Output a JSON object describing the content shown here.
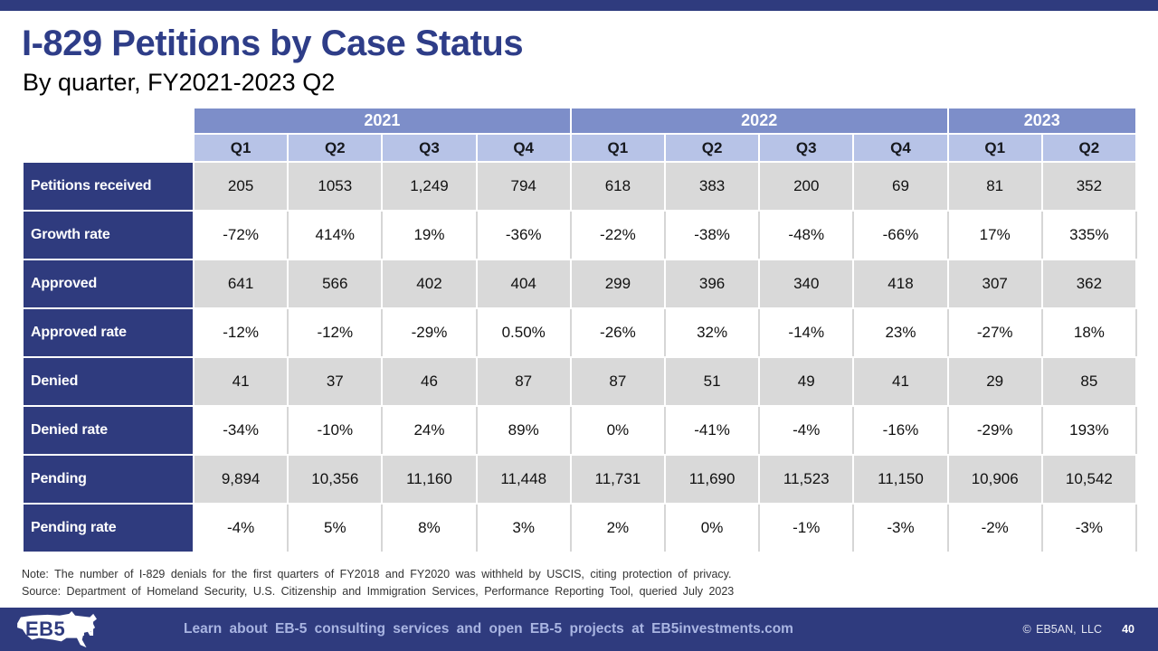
{
  "slide": {
    "title": "I-829 Petitions by Case Status",
    "subtitle": "By quarter, FY2021-2023 Q2",
    "note": "Note: The number of I-829 denials for the first quarters of FY2018 and FY2020 was withheld by USCIS, citing protection of privacy.",
    "source": "Source: Department of Homeland Security, U.S. Citizenship and Immigration Services, Performance Reporting Tool, queried July 2023",
    "footer_link": "Learn about EB-5 consulting services and open EB-5 projects at EB5investments.com",
    "copyright": "© EB5AN, LLC",
    "page_number": "40",
    "logo": {
      "left": "EB5",
      "right": "AN"
    }
  },
  "colors": {
    "navy": "#2F3B7E",
    "title_blue": "#2E3D88",
    "year_header_bg": "#7D8EC9",
    "quarter_header_bg": "#B7C3E7",
    "band_gray": "#D9D9D9",
    "footer_link_text": "#A9B5E2"
  },
  "chart_data": {
    "type": "table",
    "title": "I-829 Petitions by Case Status",
    "subtitle": "By quarter, FY2021-2023 Q2",
    "year_groups": [
      {
        "label": "2021",
        "span": 4
      },
      {
        "label": "2022",
        "span": 4
      },
      {
        "label": "2023",
        "span": 2
      }
    ],
    "columns": [
      "Q1",
      "Q2",
      "Q3",
      "Q4",
      "Q1",
      "Q2",
      "Q3",
      "Q4",
      "Q1",
      "Q2"
    ],
    "rows": [
      {
        "label": "Petitions received",
        "values": [
          "205",
          "1053",
          "1,249",
          "794",
          "618",
          "383",
          "200",
          "69",
          "81",
          "352"
        ]
      },
      {
        "label": "Growth rate",
        "values": [
          "-72%",
          "414%",
          "19%",
          "-36%",
          "-22%",
          "-38%",
          "-48%",
          "-66%",
          "17%",
          "335%"
        ]
      },
      {
        "label": "Approved",
        "values": [
          "641",
          "566",
          "402",
          "404",
          "299",
          "396",
          "340",
          "418",
          "307",
          "362"
        ]
      },
      {
        "label": "Approved rate",
        "values": [
          "-12%",
          "-12%",
          "-29%",
          "0.50%",
          "-26%",
          "32%",
          "-14%",
          "23%",
          "-27%",
          "18%"
        ]
      },
      {
        "label": "Denied",
        "values": [
          "41",
          "37",
          "46",
          "87",
          "87",
          "51",
          "49",
          "41",
          "29",
          "85"
        ]
      },
      {
        "label": "Denied rate",
        "values": [
          "-34%",
          "-10%",
          "24%",
          "89%",
          "0%",
          "-41%",
          "-4%",
          "-16%",
          "-29%",
          "193%"
        ]
      },
      {
        "label": "Pending",
        "values": [
          "9,894",
          "10,356",
          "11,160",
          "11,448",
          "11,731",
          "11,690",
          "11,523",
          "11,150",
          "10,906",
          "10,542"
        ]
      },
      {
        "label": "Pending rate",
        "values": [
          "-4%",
          "5%",
          "8%",
          "3%",
          "2%",
          "0%",
          "-1%",
          "-3%",
          "-2%",
          "-3%"
        ]
      }
    ]
  }
}
